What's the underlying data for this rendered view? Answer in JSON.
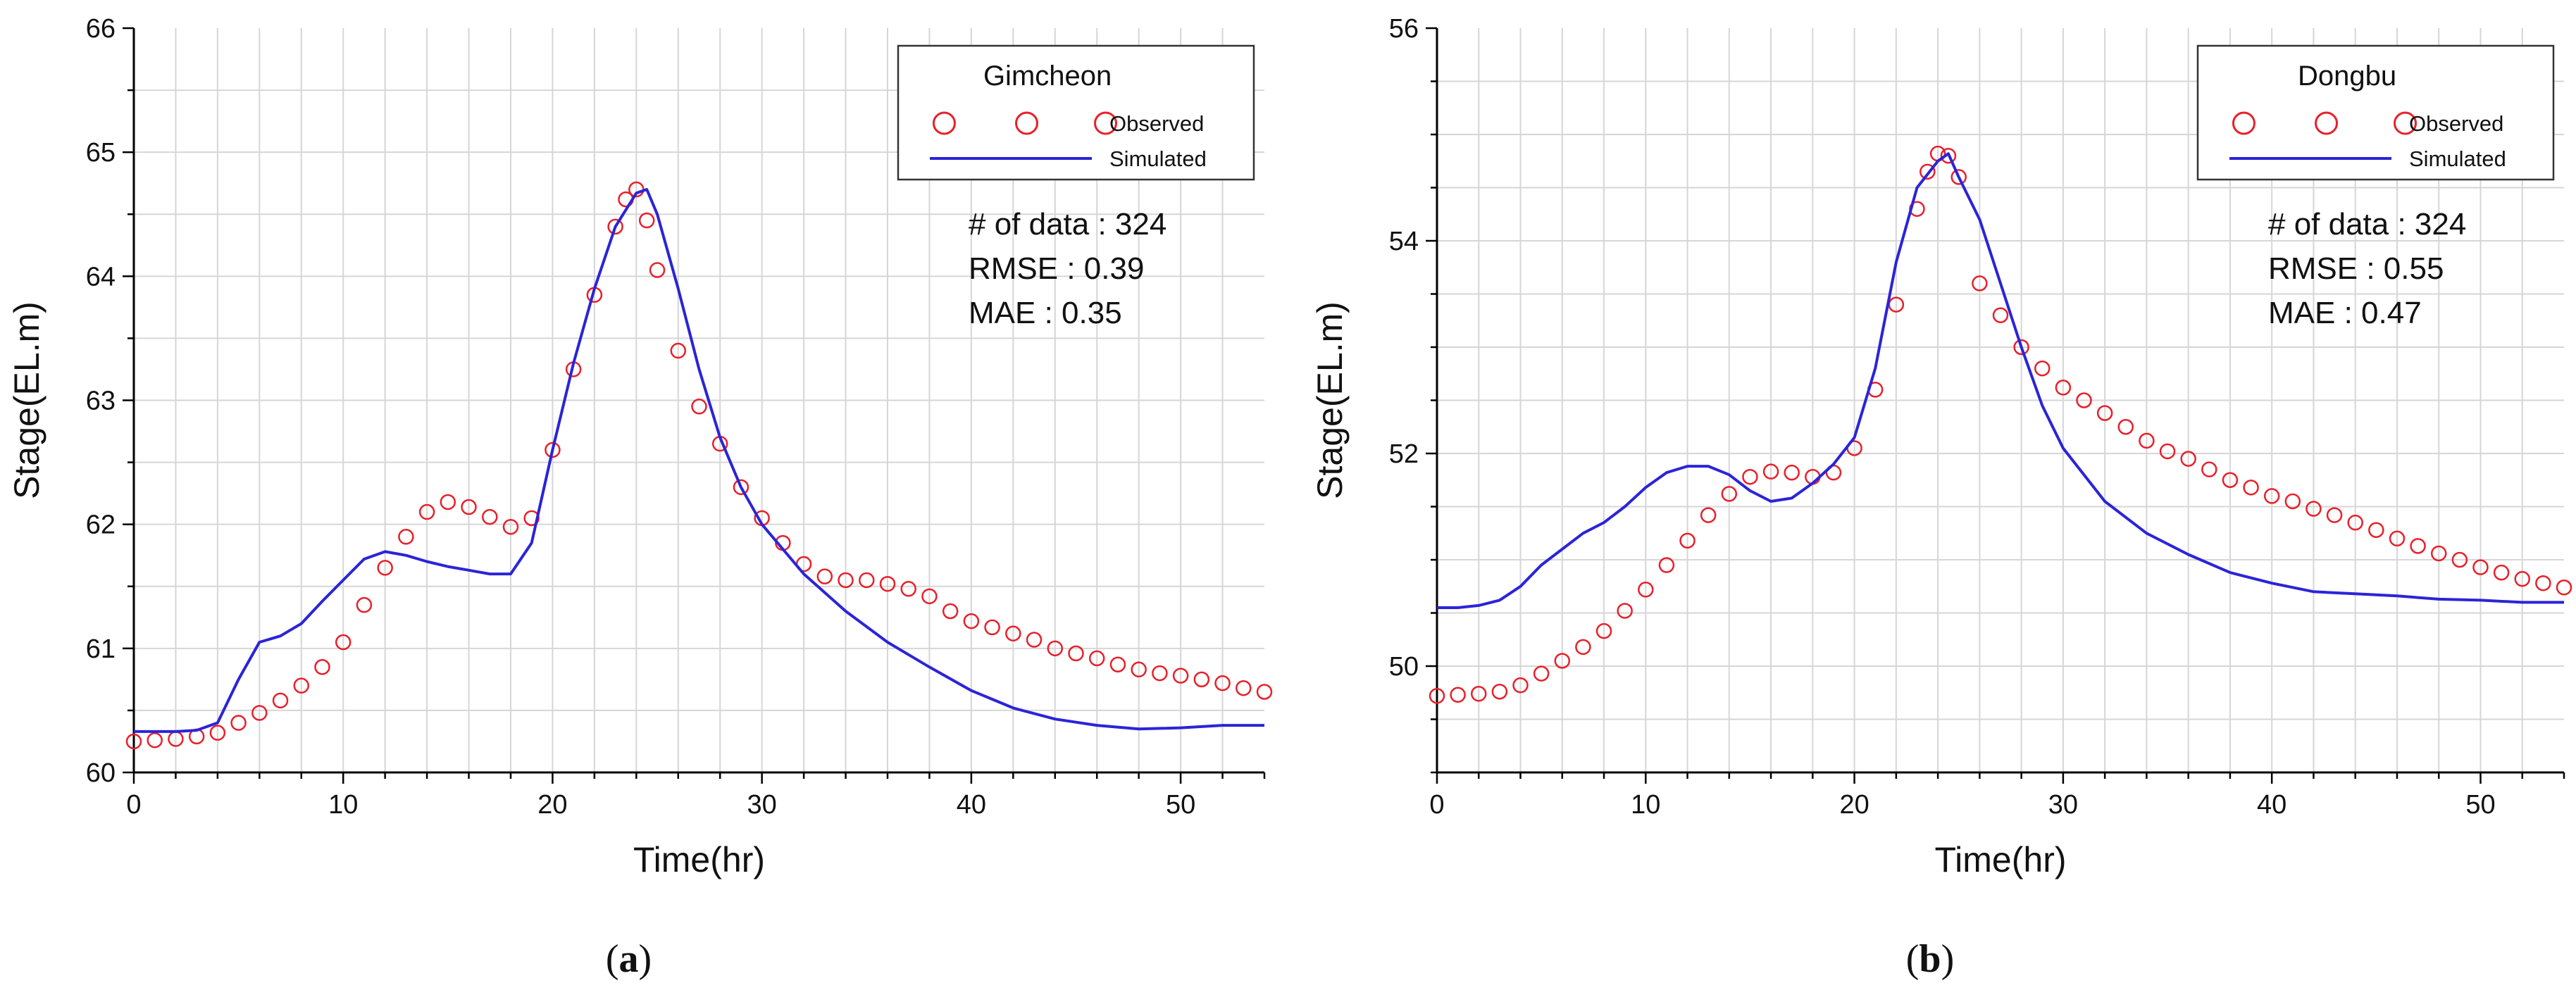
{
  "chart_data": [
    {
      "type": "line",
      "panel_label_open": "(",
      "panel_label_letter": "a",
      "panel_label_close": ")",
      "legend_title": "Gimcheon",
      "xlabel": "Time(hr)",
      "ylabel": "Stage(EL.m)",
      "xlim": [
        0,
        54
      ],
      "ylim": [
        60,
        66
      ],
      "xticks": [
        0,
        10,
        20,
        30,
        40,
        50
      ],
      "yticks": [
        60,
        61,
        62,
        63,
        64,
        65,
        66
      ],
      "grid": true,
      "legend_position": "top-right",
      "stats": [
        "# of data : 324",
        "RMSE : 0.39",
        "MAE : 0.35"
      ],
      "series": [
        {
          "name": "Observed",
          "style": "open-circle",
          "color": "#e8202a",
          "x": [
            0,
            1,
            2,
            3,
            4,
            5,
            6,
            7,
            8,
            9,
            10,
            11,
            12,
            13,
            14,
            15,
            16,
            17,
            18,
            19,
            20,
            21,
            22,
            23,
            23.5,
            24,
            24.5,
            25,
            26,
            27,
            28,
            29,
            30,
            31,
            32,
            33,
            34,
            35,
            36,
            37,
            38,
            39,
            40,
            41,
            42,
            43,
            44,
            45,
            46,
            47,
            48,
            49,
            50,
            51,
            52,
            53,
            54
          ],
          "y": [
            60.25,
            60.26,
            60.27,
            60.29,
            60.32,
            60.4,
            60.48,
            60.58,
            60.7,
            60.85,
            61.05,
            61.35,
            61.65,
            61.9,
            62.1,
            62.18,
            62.14,
            62.06,
            61.98,
            62.05,
            62.6,
            63.25,
            63.85,
            64.4,
            64.62,
            64.7,
            64.45,
            64.05,
            63.4,
            62.95,
            62.65,
            62.3,
            62.05,
            61.85,
            61.68,
            61.58,
            61.55,
            61.55,
            61.52,
            61.48,
            61.42,
            61.3,
            61.22,
            61.17,
            61.12,
            61.07,
            61.0,
            60.96,
            60.92,
            60.87,
            60.83,
            60.8,
            60.78,
            60.75,
            60.72,
            60.68,
            60.65
          ]
        },
        {
          "name": "Simulated",
          "style": "line",
          "color": "#2b24d8",
          "x": [
            0,
            1,
            2,
            3,
            4,
            5,
            6,
            7,
            8,
            9,
            10,
            11,
            12,
            13,
            14,
            15,
            16,
            17,
            18,
            19,
            20,
            21,
            22,
            23,
            24,
            24.5,
            25,
            26,
            27,
            28,
            29,
            30,
            32,
            34,
            36,
            38,
            40,
            42,
            44,
            46,
            48,
            50,
            52,
            54
          ],
          "y": [
            60.33,
            60.33,
            60.33,
            60.34,
            60.4,
            60.75,
            61.05,
            61.1,
            61.2,
            61.38,
            61.55,
            61.72,
            61.78,
            61.75,
            61.7,
            61.66,
            61.63,
            61.6,
            61.6,
            61.85,
            62.6,
            63.3,
            63.9,
            64.4,
            64.67,
            64.7,
            64.5,
            63.9,
            63.25,
            62.7,
            62.3,
            62.0,
            61.6,
            61.3,
            61.05,
            60.85,
            60.66,
            60.52,
            60.43,
            60.38,
            60.35,
            60.36,
            60.38,
            60.38
          ]
        }
      ]
    },
    {
      "type": "line",
      "panel_label_open": "(",
      "panel_label_letter": "b",
      "panel_label_close": ")",
      "legend_title": "Dongbu",
      "xlabel": "Time(hr)",
      "ylabel": "Stage(EL.m)",
      "xlim": [
        0,
        54
      ],
      "ylim": [
        49,
        56
      ],
      "xticks": [
        0,
        10,
        20,
        30,
        40,
        50
      ],
      "yticks": [
        50,
        52,
        54,
        56
      ],
      "grid": true,
      "legend_position": "top-right",
      "stats": [
        "# of data : 324",
        "RMSE : 0.55",
        "MAE : 0.47"
      ],
      "series": [
        {
          "name": "Observed",
          "style": "open-circle",
          "color": "#e8202a",
          "x": [
            0,
            1,
            2,
            3,
            4,
            5,
            6,
            7,
            8,
            9,
            10,
            11,
            12,
            13,
            14,
            15,
            16,
            17,
            18,
            19,
            20,
            21,
            22,
            23,
            23.5,
            24,
            24.5,
            25,
            26,
            27,
            28,
            29,
            30,
            31,
            32,
            33,
            34,
            35,
            36,
            37,
            38,
            39,
            40,
            41,
            42,
            43,
            44,
            45,
            46,
            47,
            48,
            49,
            50,
            51,
            52,
            53,
            54
          ],
          "y": [
            49.72,
            49.73,
            49.74,
            49.76,
            49.82,
            49.93,
            50.05,
            50.18,
            50.33,
            50.52,
            50.72,
            50.95,
            51.18,
            51.42,
            51.62,
            51.78,
            51.83,
            51.82,
            51.78,
            51.82,
            52.05,
            52.6,
            53.4,
            54.3,
            54.65,
            54.82,
            54.8,
            54.6,
            53.6,
            53.3,
            53.0,
            52.8,
            52.62,
            52.5,
            52.38,
            52.25,
            52.12,
            52.02,
            51.95,
            51.85,
            51.75,
            51.68,
            51.6,
            51.55,
            51.48,
            51.42,
            51.35,
            51.28,
            51.2,
            51.13,
            51.06,
            51.0,
            50.93,
            50.88,
            50.82,
            50.78,
            50.74
          ]
        },
        {
          "name": "Simulated",
          "style": "line",
          "color": "#2b24d8",
          "x": [
            0,
            1,
            2,
            3,
            4,
            5,
            6,
            7,
            8,
            9,
            10,
            11,
            12,
            13,
            14,
            15,
            16,
            17,
            18,
            19,
            20,
            21,
            22,
            23,
            24,
            24.5,
            25,
            26,
            27,
            28,
            29,
            30,
            32,
            34,
            36,
            38,
            40,
            42,
            44,
            46,
            48,
            50,
            52,
            54
          ],
          "y": [
            50.55,
            50.55,
            50.57,
            50.62,
            50.75,
            50.95,
            51.1,
            51.25,
            51.35,
            51.5,
            51.68,
            51.82,
            51.88,
            51.88,
            51.8,
            51.65,
            51.55,
            51.58,
            51.72,
            51.9,
            52.15,
            52.8,
            53.8,
            54.5,
            54.75,
            54.82,
            54.6,
            54.2,
            53.6,
            53.0,
            52.45,
            52.05,
            51.55,
            51.25,
            51.05,
            50.88,
            50.78,
            50.7,
            50.68,
            50.66,
            50.63,
            50.62,
            50.6,
            50.6
          ]
        }
      ]
    }
  ]
}
